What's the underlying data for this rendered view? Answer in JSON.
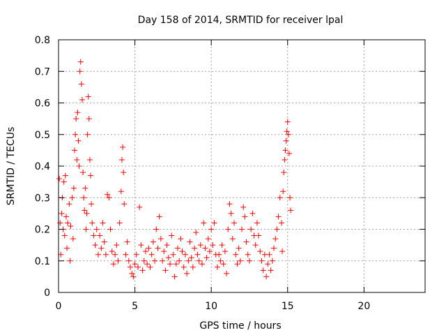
{
  "chart_data": {
    "type": "scatter",
    "title": "Day 158 of 2014, SRMTID for receiver lpal",
    "xlabel": "GPS time / hours",
    "ylabel": "SRMTID / TECUs",
    "xlim": [
      0,
      24
    ],
    "ylim": [
      0,
      0.8
    ],
    "xticks": [
      0,
      5,
      10,
      15,
      20
    ],
    "yticks": [
      0,
      0.1,
      0.2,
      0.3,
      0.4,
      0.5,
      0.6,
      0.7,
      0.8
    ],
    "xtick_labels": [
      "0",
      "5",
      "10",
      "15",
      "20"
    ],
    "ytick_labels": [
      "0",
      "0.1",
      "0.2",
      "0.3",
      "0.4",
      "0.5",
      "0.6",
      "0.7",
      "0.8"
    ],
    "grid": true,
    "marker": "+",
    "color": "#ff0000",
    "series": [
      {
        "name": "SRMTID",
        "points": [
          [
            0.05,
            0.36
          ],
          [
            0.1,
            0.22
          ],
          [
            0.15,
            0.12
          ],
          [
            0.2,
            0.25
          ],
          [
            0.25,
            0.3
          ],
          [
            0.3,
            0.2
          ],
          [
            0.35,
            0.35
          ],
          [
            0.4,
            0.18
          ],
          [
            0.45,
            0.37
          ],
          [
            0.5,
            0.24
          ],
          [
            0.55,
            0.14
          ],
          [
            0.6,
            0.22
          ],
          [
            0.7,
            0.28
          ],
          [
            0.75,
            0.1
          ],
          [
            0.8,
            0.21
          ],
          [
            0.9,
            0.3
          ],
          [
            0.95,
            0.17
          ],
          [
            1.0,
            0.33
          ],
          [
            1.05,
            0.45
          ],
          [
            1.1,
            0.5
          ],
          [
            1.15,
            0.55
          ],
          [
            1.2,
            0.42
          ],
          [
            1.25,
            0.57
          ],
          [
            1.3,
            0.48
          ],
          [
            1.35,
            0.4
          ],
          [
            1.4,
            0.7
          ],
          [
            1.45,
            0.73
          ],
          [
            1.5,
            0.66
          ],
          [
            1.55,
            0.61
          ],
          [
            1.6,
            0.38
          ],
          [
            1.65,
            0.3
          ],
          [
            1.7,
            0.26
          ],
          [
            1.75,
            0.33
          ],
          [
            1.8,
            0.2
          ],
          [
            1.85,
            0.25
          ],
          [
            1.9,
            0.5
          ],
          [
            1.95,
            0.62
          ],
          [
            2.0,
            0.55
          ],
          [
            2.05,
            0.42
          ],
          [
            2.1,
            0.37
          ],
          [
            2.15,
            0.28
          ],
          [
            2.2,
            0.22
          ],
          [
            2.3,
            0.18
          ],
          [
            2.4,
            0.15
          ],
          [
            2.5,
            0.2
          ],
          [
            2.6,
            0.12
          ],
          [
            2.7,
            0.18
          ],
          [
            2.8,
            0.14
          ],
          [
            2.9,
            0.22
          ],
          [
            3.0,
            0.16
          ],
          [
            3.1,
            0.12
          ],
          [
            3.2,
            0.31
          ],
          [
            3.3,
            0.3
          ],
          [
            3.4,
            0.2
          ],
          [
            3.5,
            0.13
          ],
          [
            3.6,
            0.09
          ],
          [
            3.7,
            0.12
          ],
          [
            3.8,
            0.15
          ],
          [
            3.9,
            0.1
          ],
          [
            4.0,
            0.22
          ],
          [
            4.1,
            0.32
          ],
          [
            4.15,
            0.42
          ],
          [
            4.2,
            0.46
          ],
          [
            4.25,
            0.38
          ],
          [
            4.3,
            0.28
          ],
          [
            4.4,
            0.12
          ],
          [
            4.5,
            0.16
          ],
          [
            4.6,
            0.1
          ],
          [
            4.7,
            0.08
          ],
          [
            4.8,
            0.06
          ],
          [
            4.9,
            0.05
          ],
          [
            5.0,
            0.09
          ],
          [
            5.1,
            0.12
          ],
          [
            5.2,
            0.08
          ],
          [
            5.3,
            0.27
          ],
          [
            5.4,
            0.15
          ],
          [
            5.5,
            0.07
          ],
          [
            5.6,
            0.1
          ],
          [
            5.7,
            0.13
          ],
          [
            5.8,
            0.09
          ],
          [
            5.9,
            0.14
          ],
          [
            6.0,
            0.08
          ],
          [
            6.1,
            0.12
          ],
          [
            6.2,
            0.16
          ],
          [
            6.3,
            0.1
          ],
          [
            6.4,
            0.2
          ],
          [
            6.5,
            0.14
          ],
          [
            6.6,
            0.24
          ],
          [
            6.7,
            0.17
          ],
          [
            6.8,
            0.1
          ],
          [
            6.9,
            0.13
          ],
          [
            7.0,
            0.07
          ],
          [
            7.1,
            0.15
          ],
          [
            7.2,
            0.11
          ],
          [
            7.3,
            0.09
          ],
          [
            7.4,
            0.18
          ],
          [
            7.5,
            0.12
          ],
          [
            7.6,
            0.05
          ],
          [
            7.7,
            0.09
          ],
          [
            7.8,
            0.14
          ],
          [
            7.9,
            0.1
          ],
          [
            8.0,
            0.17
          ],
          [
            8.1,
            0.13
          ],
          [
            8.2,
            0.08
          ],
          [
            8.3,
            0.12
          ],
          [
            8.4,
            0.06
          ],
          [
            8.5,
            0.1
          ],
          [
            8.6,
            0.16
          ],
          [
            8.7,
            0.11
          ],
          [
            8.8,
            0.08
          ],
          [
            8.9,
            0.14
          ],
          [
            9.0,
            0.19
          ],
          [
            9.1,
            0.12
          ],
          [
            9.2,
            0.1
          ],
          [
            9.3,
            0.15
          ],
          [
            9.4,
            0.09
          ],
          [
            9.5,
            0.22
          ],
          [
            9.6,
            0.14
          ],
          [
            9.7,
            0.11
          ],
          [
            9.8,
            0.17
          ],
          [
            9.9,
            0.13
          ],
          [
            10.0,
            0.2
          ],
          [
            10.1,
            0.15
          ],
          [
            10.2,
            0.22
          ],
          [
            10.3,
            0.12
          ],
          [
            10.4,
            0.08
          ],
          [
            10.5,
            0.12
          ],
          [
            10.6,
            0.1
          ],
          [
            10.7,
            0.15
          ],
          [
            10.8,
            0.09
          ],
          [
            10.9,
            0.13
          ],
          [
            11.0,
            0.06
          ],
          [
            11.1,
            0.2
          ],
          [
            11.2,
            0.28
          ],
          [
            11.3,
            0.25
          ],
          [
            11.4,
            0.17
          ],
          [
            11.5,
            0.22
          ],
          [
            11.6,
            0.12
          ],
          [
            11.7,
            0.09
          ],
          [
            11.8,
            0.14
          ],
          [
            11.9,
            0.1
          ],
          [
            12.0,
            0.2
          ],
          [
            12.1,
            0.27
          ],
          [
            12.2,
            0.24
          ],
          [
            12.3,
            0.16
          ],
          [
            12.4,
            0.12
          ],
          [
            12.5,
            0.1
          ],
          [
            12.6,
            0.2
          ],
          [
            12.7,
            0.25
          ],
          [
            12.8,
            0.18
          ],
          [
            12.9,
            0.15
          ],
          [
            13.0,
            0.22
          ],
          [
            13.1,
            0.18
          ],
          [
            13.2,
            0.13
          ],
          [
            13.3,
            0.1
          ],
          [
            13.4,
            0.07
          ],
          [
            13.5,
            0.12
          ],
          [
            13.6,
            0.05
          ],
          [
            13.7,
            0.09
          ],
          [
            13.8,
            0.12
          ],
          [
            13.9,
            0.07
          ],
          [
            14.0,
            0.1
          ],
          [
            14.1,
            0.14
          ],
          [
            14.2,
            0.17
          ],
          [
            14.3,
            0.2
          ],
          [
            14.4,
            0.24
          ],
          [
            14.5,
            0.3
          ],
          [
            14.6,
            0.22
          ],
          [
            14.65,
            0.13
          ],
          [
            14.7,
            0.32
          ],
          [
            14.75,
            0.38
          ],
          [
            14.8,
            0.42
          ],
          [
            14.85,
            0.45
          ],
          [
            14.9,
            0.48
          ],
          [
            14.95,
            0.51
          ],
          [
            15.0,
            0.54
          ],
          [
            15.05,
            0.5
          ],
          [
            15.1,
            0.44
          ],
          [
            15.15,
            0.3
          ],
          [
            15.2,
            0.26
          ]
        ]
      }
    ]
  }
}
